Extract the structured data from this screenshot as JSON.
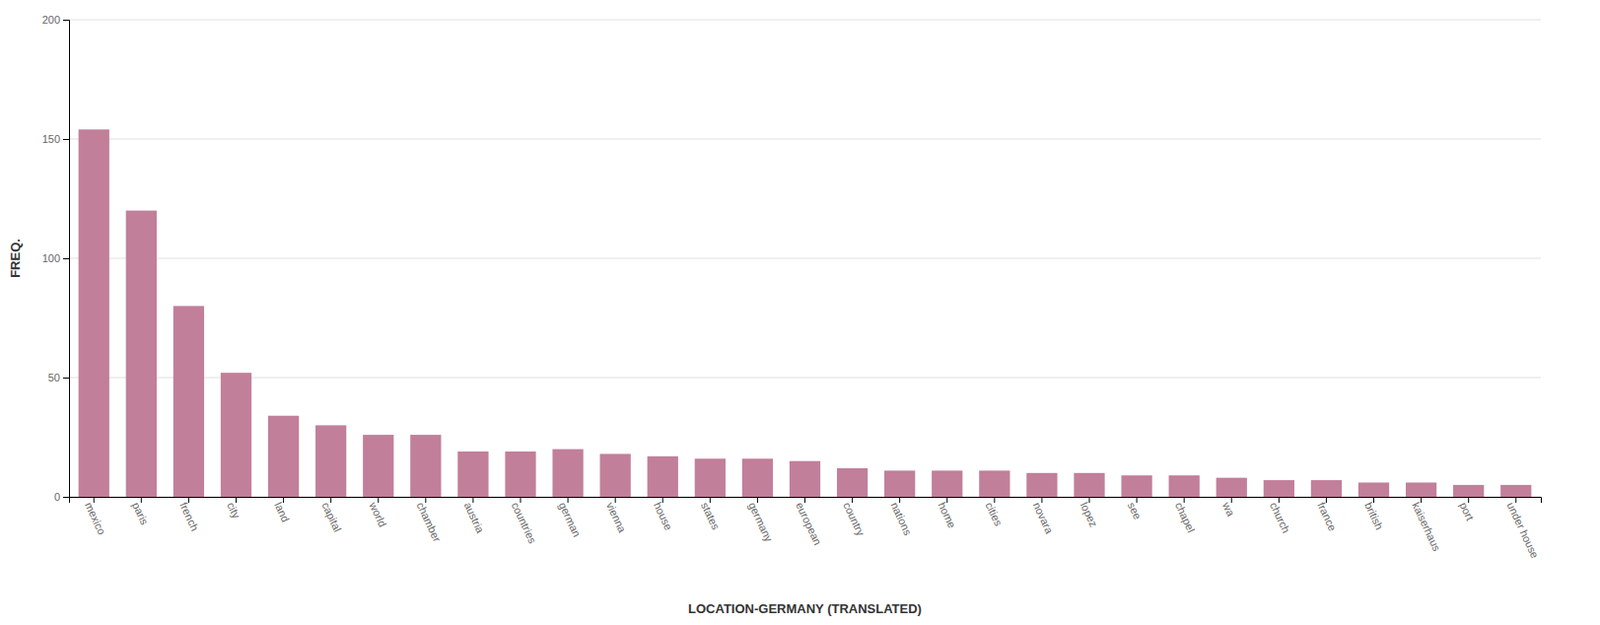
{
  "chart_data": {
    "type": "bar",
    "categories": [
      "mexico",
      "paris",
      "french",
      "city",
      "land",
      "capital",
      "world",
      "chamber",
      "austria",
      "countries",
      "german",
      "vienna",
      "house",
      "states",
      "germany",
      "european",
      "country",
      "nations",
      "home",
      "cities",
      "novara",
      "lopez",
      "see",
      "chapel",
      "wa",
      "church",
      "france",
      "british",
      "kaiserhaus",
      "port",
      "under house"
    ],
    "values": [
      154,
      120,
      80,
      52,
      34,
      30,
      26,
      26,
      19,
      19,
      20,
      18,
      17,
      16,
      16,
      15,
      12,
      11,
      11,
      11,
      10,
      10,
      9,
      9,
      8,
      7,
      7,
      6,
      6,
      5,
      5
    ],
    "color": "#c17f9a",
    "xlabel": "LOCATION-GERMANY (TRANSLATED)",
    "ylabel": "FREQ.",
    "ylim": [
      0,
      200
    ],
    "yticks": [
      0,
      50,
      100,
      150,
      200
    ],
    "grid": true
  }
}
